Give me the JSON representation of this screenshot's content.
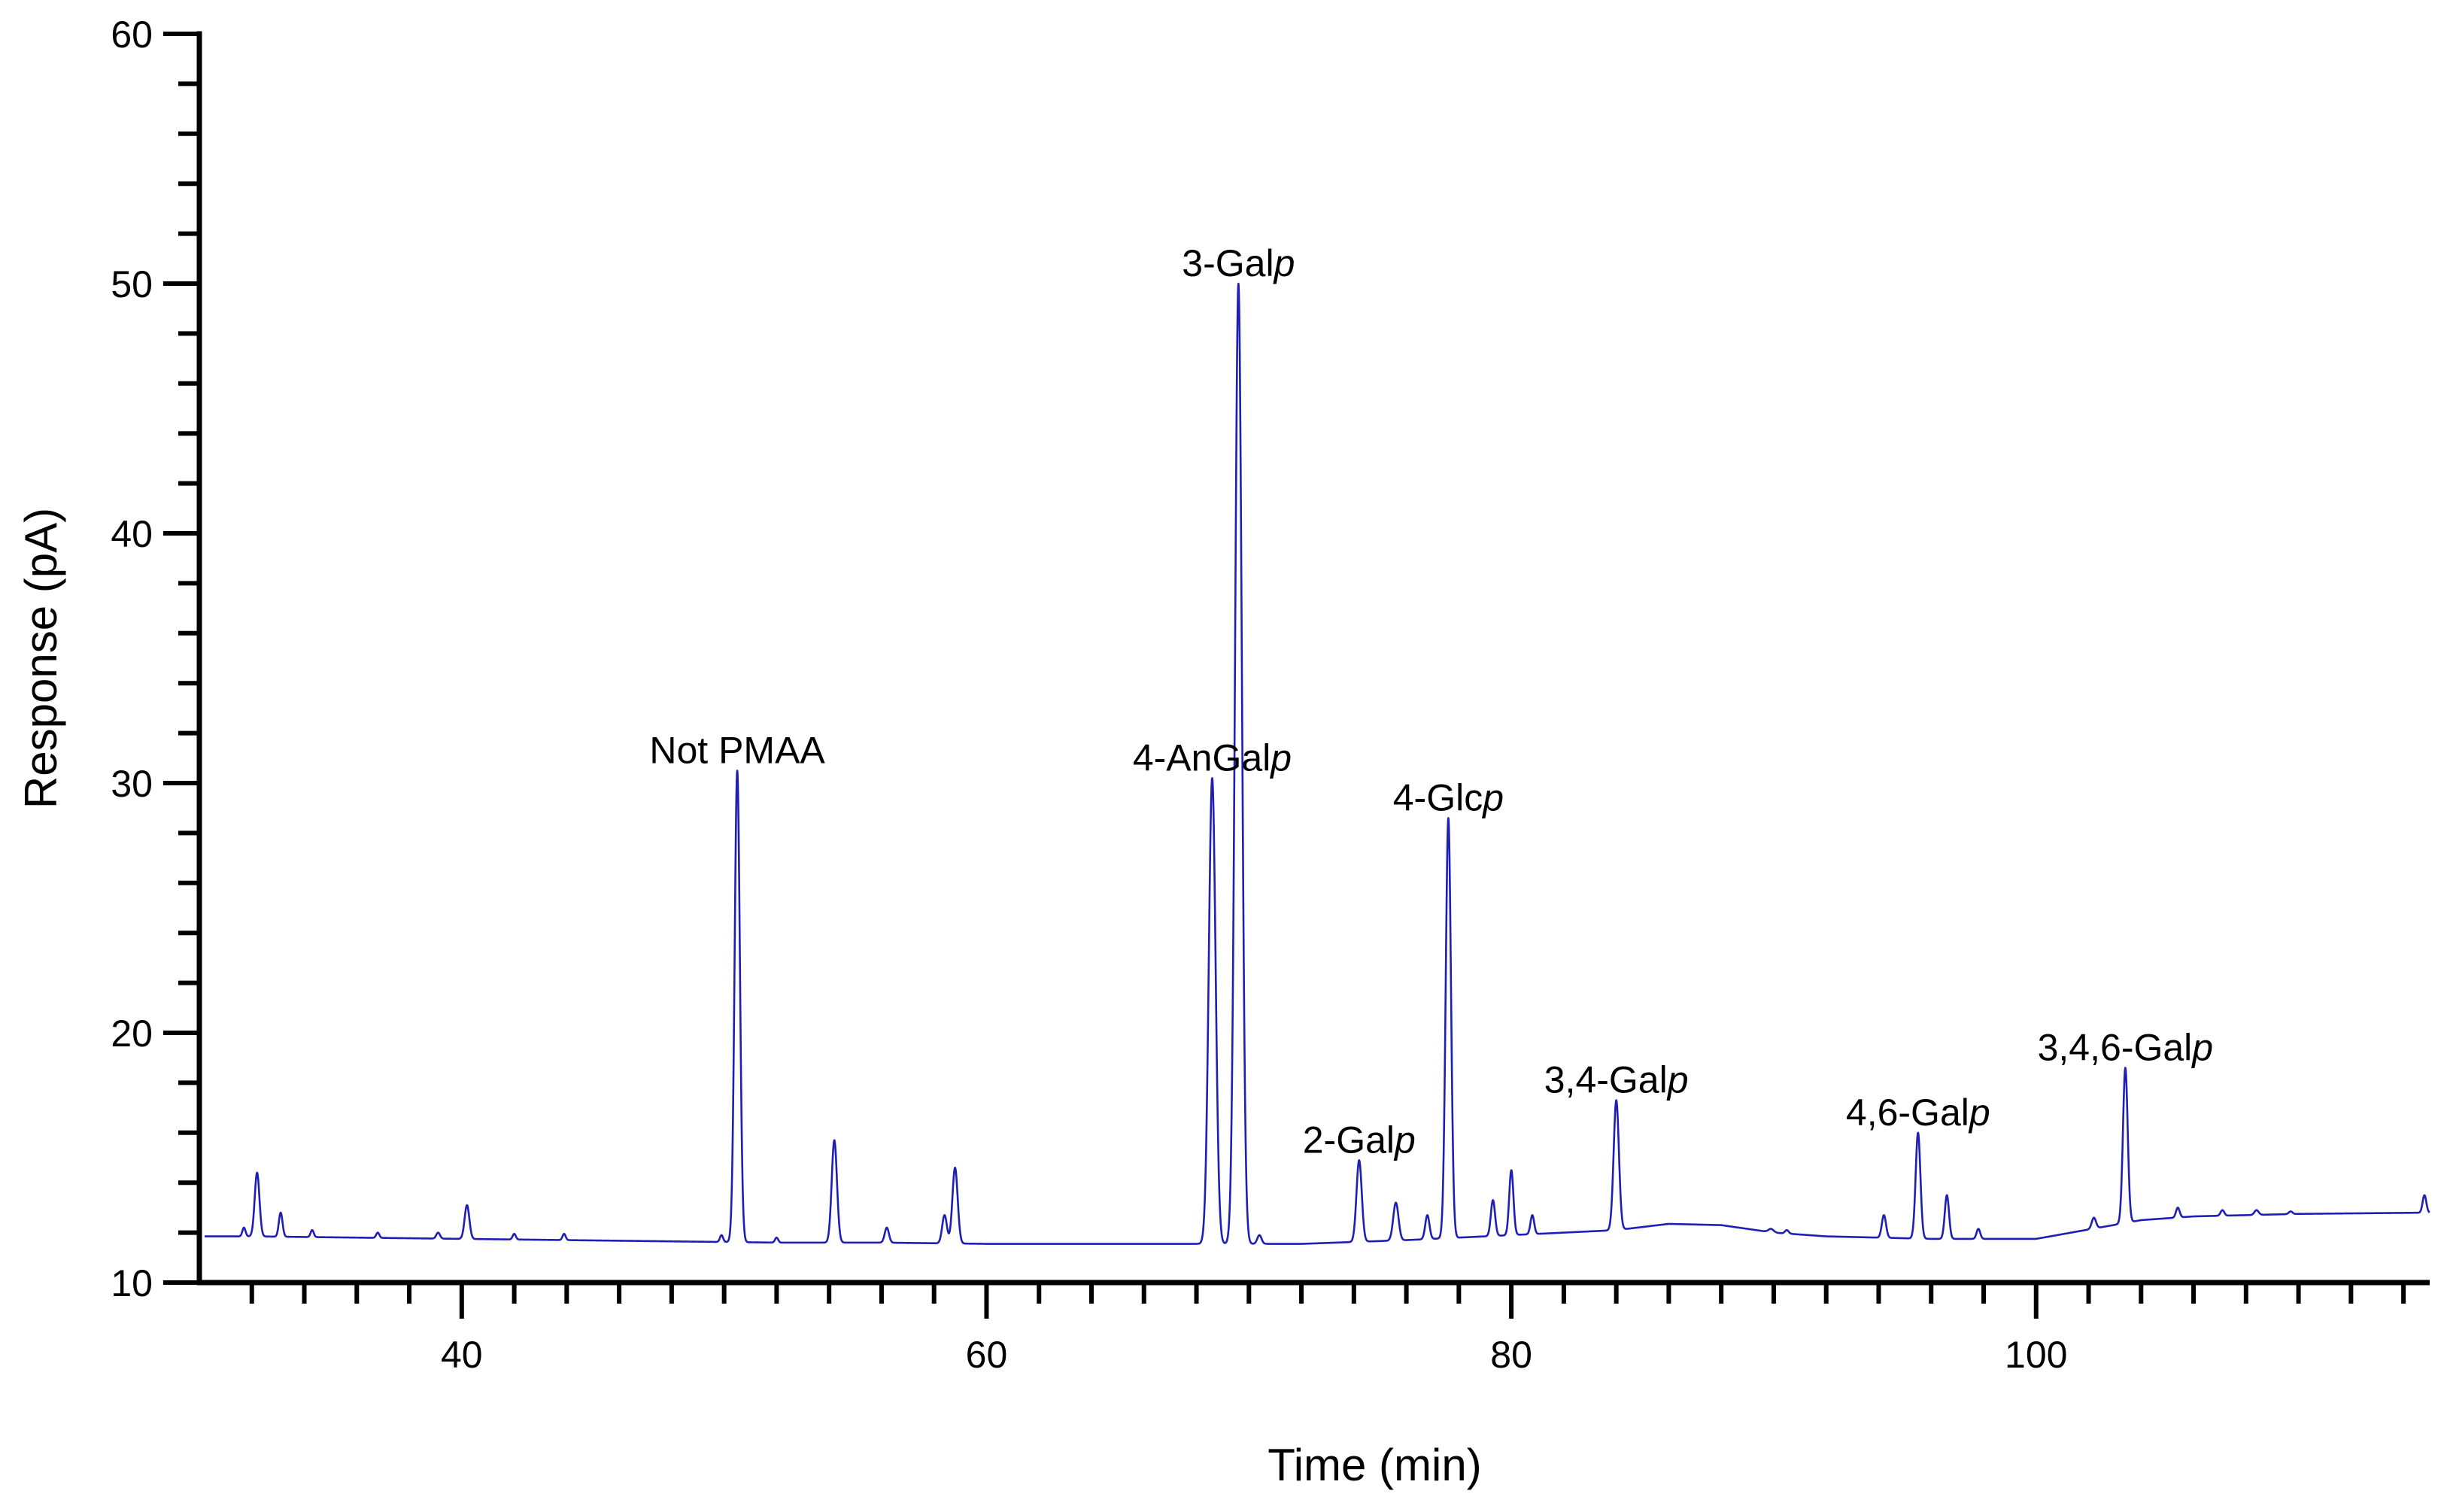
{
  "chart_data": {
    "type": "line",
    "title": "",
    "xlabel": "Time (min)",
    "ylabel": "Response (pA)",
    "xlim": [
      30,
      115
    ],
    "ylim": [
      10,
      60
    ],
    "x_major_ticks": [
      40,
      60,
      80,
      100
    ],
    "x_minor_step": 2,
    "y_major_ticks": [
      10,
      20,
      30,
      40,
      50,
      60
    ],
    "y_minor_step": 2,
    "grid": false,
    "line_color": "#1f1fb4",
    "baseline": [
      [
        30.2,
        11.85
      ],
      [
        32,
        11.85
      ],
      [
        36,
        11.8
      ],
      [
        40,
        11.75
      ],
      [
        44,
        11.7
      ],
      [
        48,
        11.65
      ],
      [
        52,
        11.6
      ],
      [
        56,
        11.6
      ],
      [
        60,
        11.55
      ],
      [
        64,
        11.55
      ],
      [
        68,
        11.55
      ],
      [
        72,
        11.55
      ],
      [
        76,
        11.7
      ],
      [
        80,
        11.9
      ],
      [
        84,
        12.1
      ],
      [
        86,
        12.35
      ],
      [
        88,
        12.3
      ],
      [
        90,
        12.0
      ],
      [
        92,
        11.85
      ],
      [
        96,
        11.75
      ],
      [
        100,
        11.75
      ],
      [
        104,
        12.5
      ],
      [
        106,
        12.65
      ],
      [
        110,
        12.75
      ],
      [
        115,
        12.8
      ]
    ],
    "peaks": [
      {
        "x": 32.2,
        "y": 14.4,
        "w": 0.09
      },
      {
        "x": 33.1,
        "y": 12.8,
        "w": 0.07
      },
      {
        "x": 31.7,
        "y": 12.2,
        "w": 0.06
      },
      {
        "x": 34.3,
        "y": 12.1,
        "w": 0.06
      },
      {
        "x": 36.8,
        "y": 12.0,
        "w": 0.06
      },
      {
        "x": 39.1,
        "y": 12.0,
        "w": 0.07
      },
      {
        "x": 40.2,
        "y": 13.1,
        "w": 0.09
      },
      {
        "x": 42.0,
        "y": 11.95,
        "w": 0.06
      },
      {
        "x": 43.9,
        "y": 11.95,
        "w": 0.06
      },
      {
        "x": 49.9,
        "y": 11.9,
        "w": 0.06
      },
      {
        "x": 50.5,
        "y": 30.5,
        "w": 0.1
      },
      {
        "x": 52.0,
        "y": 11.8,
        "w": 0.06
      },
      {
        "x": 54.2,
        "y": 15.7,
        "w": 0.1
      },
      {
        "x": 56.2,
        "y": 12.2,
        "w": 0.08
      },
      {
        "x": 58.4,
        "y": 12.7,
        "w": 0.09
      },
      {
        "x": 58.8,
        "y": 14.6,
        "w": 0.1
      },
      {
        "x": 68.6,
        "y": 30.2,
        "w": 0.13
      },
      {
        "x": 69.6,
        "y": 50.0,
        "w": 0.13
      },
      {
        "x": 70.4,
        "y": 11.9,
        "w": 0.08
      },
      {
        "x": 74.2,
        "y": 14.9,
        "w": 0.1
      },
      {
        "x": 75.6,
        "y": 13.2,
        "w": 0.1
      },
      {
        "x": 76.8,
        "y": 12.7,
        "w": 0.08
      },
      {
        "x": 77.6,
        "y": 28.6,
        "w": 0.1
      },
      {
        "x": 79.3,
        "y": 13.3,
        "w": 0.08
      },
      {
        "x": 80.0,
        "y": 14.5,
        "w": 0.08
      },
      {
        "x": 80.8,
        "y": 12.7,
        "w": 0.07
      },
      {
        "x": 84.0,
        "y": 17.3,
        "w": 0.1
      },
      {
        "x": 89.9,
        "y": 12.15,
        "w": 0.1
      },
      {
        "x": 90.5,
        "y": 12.1,
        "w": 0.07
      },
      {
        "x": 94.2,
        "y": 12.7,
        "w": 0.08
      },
      {
        "x": 95.5,
        "y": 16.0,
        "w": 0.09
      },
      {
        "x": 96.6,
        "y": 13.5,
        "w": 0.08
      },
      {
        "x": 97.8,
        "y": 12.15,
        "w": 0.07
      },
      {
        "x": 102.2,
        "y": 12.6,
        "w": 0.08
      },
      {
        "x": 103.4,
        "y": 18.6,
        "w": 0.09
      },
      {
        "x": 105.4,
        "y": 13.0,
        "w": 0.07
      },
      {
        "x": 107.1,
        "y": 12.9,
        "w": 0.07
      },
      {
        "x": 108.4,
        "y": 12.9,
        "w": 0.08
      },
      {
        "x": 109.7,
        "y": 12.85,
        "w": 0.07
      },
      {
        "x": 114.8,
        "y": 13.5,
        "w": 0.07
      }
    ],
    "annotations": [
      {
        "text": "Not PMAA",
        "italic_suffix": "",
        "x": 50.5,
        "y": 30.5
      },
      {
        "text": "4-AnGal",
        "italic_suffix": "p",
        "x": 68.6,
        "y": 30.2
      },
      {
        "text": "3-Gal",
        "italic_suffix": "p",
        "x": 69.6,
        "y": 50.0
      },
      {
        "text": "2-Gal",
        "italic_suffix": "p",
        "x": 74.2,
        "y": 14.9
      },
      {
        "text": "4-Glc",
        "italic_suffix": "p",
        "x": 77.6,
        "y": 28.6
      },
      {
        "text": "3,4-Gal",
        "italic_suffix": "p",
        "x": 84.0,
        "y": 17.3
      },
      {
        "text": "4,6-Gal",
        "italic_suffix": "p",
        "x": 95.5,
        "y": 16.0
      },
      {
        "text": "3,4,6-Gal",
        "italic_suffix": "p",
        "x": 103.4,
        "y": 18.6
      }
    ]
  }
}
